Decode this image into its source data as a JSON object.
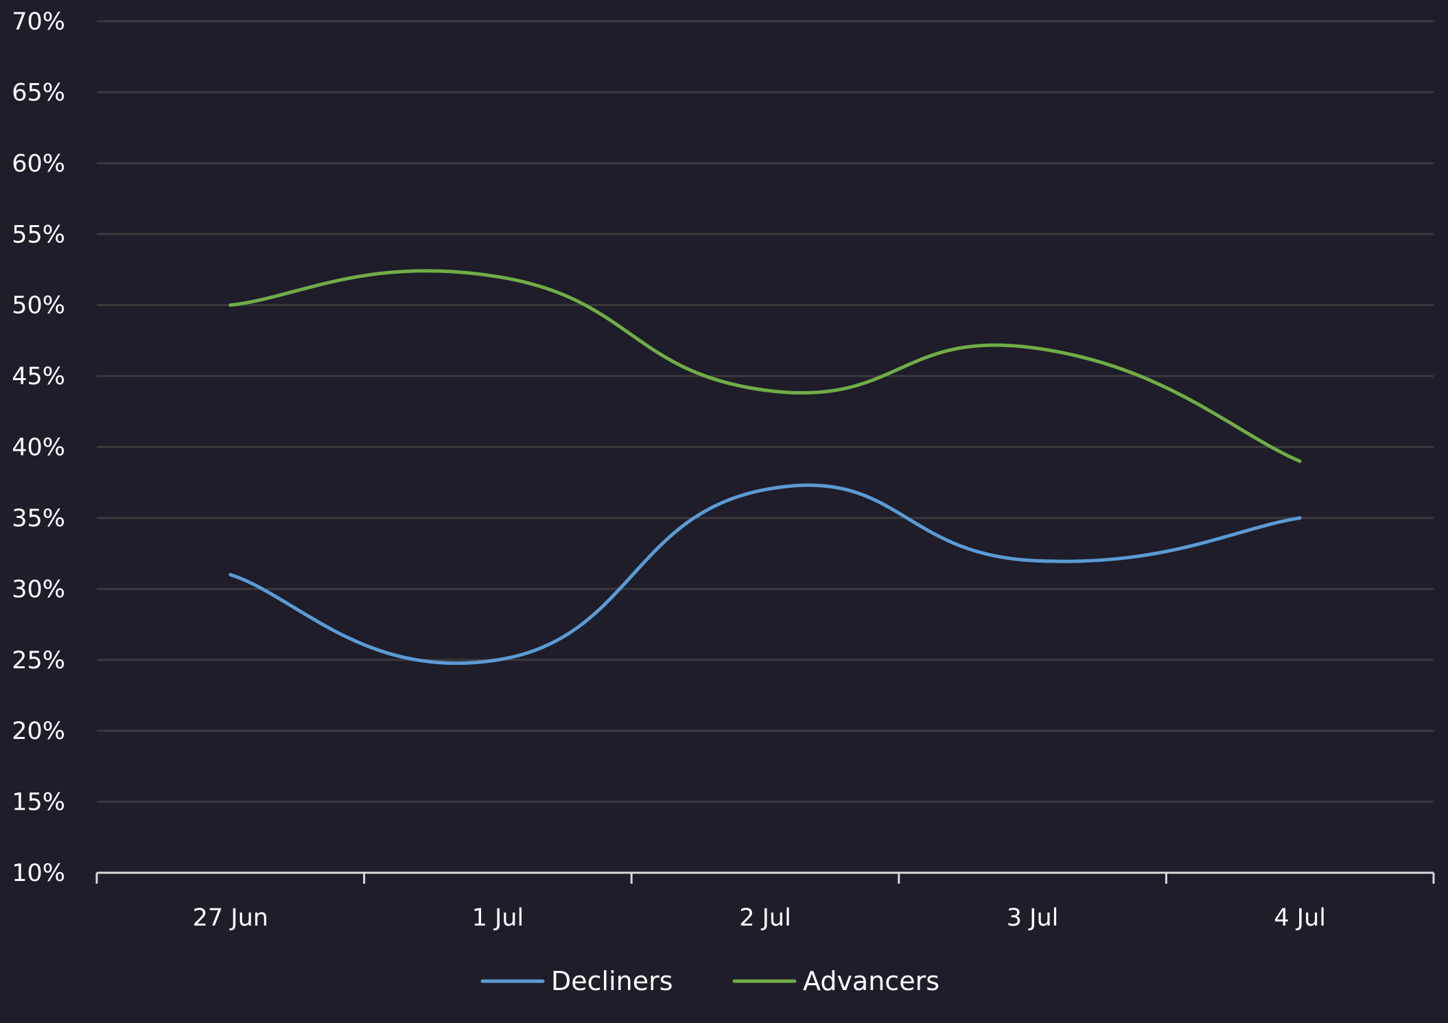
{
  "chart_data": {
    "type": "line",
    "title": "",
    "xlabel": "",
    "ylabel": "",
    "categories": [
      "27 Jun",
      "1 Jul",
      "2 Jul",
      "3 Jul",
      "4 Jul"
    ],
    "series": [
      {
        "name": "Decliners",
        "color": "#5b9bd5",
        "values": [
          31,
          25,
          37,
          32,
          35
        ]
      },
      {
        "name": "Advancers",
        "color": "#70ad47",
        "values": [
          50,
          52,
          44,
          47,
          39
        ]
      }
    ],
    "ylim": [
      10,
      70
    ],
    "yticks": [
      "10%",
      "15%",
      "20%",
      "25%",
      "30%",
      "35%",
      "40%",
      "45%",
      "50%",
      "55%",
      "60%",
      "65%",
      "70%"
    ],
    "grid": true,
    "smooth": true,
    "legend_position": "bottom",
    "colors": {
      "background": "#1e1d29",
      "grid": "#3a3a3e",
      "axis": "#d9d9d9",
      "text": "#ffffff"
    }
  }
}
